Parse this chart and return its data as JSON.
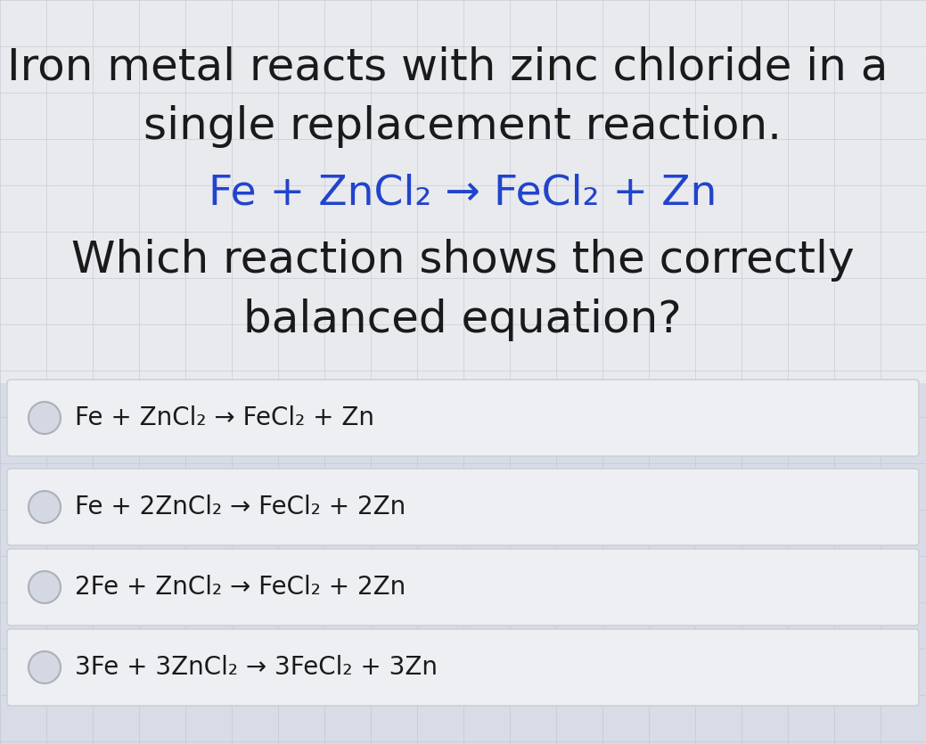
{
  "background_color": "#d8dce6",
  "upper_bg_color": "#e8eaee",
  "title_line1": "Iron metal reacts with zinc chloride in a",
  "title_line2": "single replacement reaction.",
  "equation_line": "Fe + ZnCl₂ → FeCl₂ + Zn",
  "question_line1": "Which reaction shows the correctly",
  "question_line2": "balanced equation?",
  "options": [
    "Fe + ZnCl₂ → FeCl₂ + Zn",
    "Fe + 2ZnCl₂ → FeCl₂ + 2Zn",
    "2Fe + ZnCl₂ → FeCl₂ + 2Zn",
    "3Fe + 3ZnCl₂ → 3FeCl₂ + 3Zn"
  ],
  "title_color": "#1a1a1a",
  "equation_color": "#2244cc",
  "question_color": "#1a1a1a",
  "option_color": "#1a1a1a",
  "option_box_facecolor": "#eeeff2",
  "option_box_edgecolor": "#c8cdd5",
  "radio_face": "#d4d8e2",
  "radio_edge": "#aab0bc",
  "grid_color": "#c8ccd6",
  "title_fontsize": 36,
  "equation_fontsize": 34,
  "question_fontsize": 36,
  "option_fontsize": 20
}
